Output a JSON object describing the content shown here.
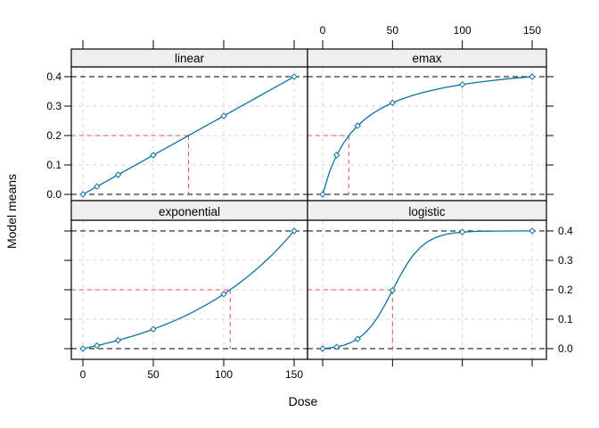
{
  "chart_data": {
    "type": "line",
    "layout": "2x2-lattice",
    "title": "",
    "xlabel": "Dose",
    "ylabel": "Model means",
    "xlim": [
      0,
      150
    ],
    "ylim": [
      0.0,
      0.4
    ],
    "grid": true,
    "x_ticks": [
      0,
      50,
      100,
      150
    ],
    "x_tick_labels": [
      "0",
      "50",
      "100",
      "150"
    ],
    "y_ticks": [
      0.0,
      0.1,
      0.2,
      0.3,
      0.4
    ],
    "y_tick_labels": [
      "0.0",
      "0.1",
      "0.2",
      "0.3",
      "0.4"
    ],
    "reference_lines_y": [
      0.0,
      0.4
    ],
    "doses": [
      0,
      10,
      25,
      50,
      100,
      150
    ],
    "curve_x": [
      0,
      5,
      10,
      15,
      20,
      25,
      30,
      35,
      40,
      45,
      50,
      55,
      60,
      65,
      70,
      75,
      80,
      85,
      90,
      95,
      100,
      105,
      110,
      115,
      120,
      125,
      130,
      135,
      140,
      145,
      150
    ],
    "panels": [
      {
        "name": "linear",
        "strip_label": "linear",
        "row": 0,
        "col": 0,
        "marker_y": [
          0,
          0.0267,
          0.0667,
          0.1333,
          0.2667,
          0.4
        ],
        "curve_y": [
          0,
          0.0133,
          0.0267,
          0.04,
          0.0533,
          0.0667,
          0.08,
          0.0933,
          0.1067,
          0.12,
          0.1333,
          0.1467,
          0.16,
          0.1733,
          0.1867,
          0.2,
          0.2133,
          0.2267,
          0.24,
          0.2533,
          0.2667,
          0.28,
          0.2933,
          0.3067,
          0.32,
          0.3333,
          0.3467,
          0.36,
          0.3733,
          0.3867,
          0.4
        ],
        "td_line": {
          "y": 0.2,
          "x": 75
        }
      },
      {
        "name": "emax",
        "strip_label": "emax",
        "row": 0,
        "col": 1,
        "marker_y": [
          0,
          0.1333,
          0.2333,
          0.3111,
          0.3733,
          0.4
        ],
        "curve_y": [
          0,
          0.0778,
          0.1333,
          0.175,
          0.2074,
          0.2333,
          0.2545,
          0.2722,
          0.2872,
          0.3,
          0.3111,
          0.3208,
          0.3294,
          0.337,
          0.3439,
          0.35,
          0.3556,
          0.3606,
          0.3652,
          0.3694,
          0.3733,
          0.3769,
          0.3802,
          0.3833,
          0.3862,
          0.3889,
          0.3914,
          0.3938,
          0.396,
          0.398,
          0.4
        ],
        "td_line": {
          "y": 0.2,
          "x": 18.75
        }
      },
      {
        "name": "exponential",
        "strip_label": "exponential",
        "row": 1,
        "col": 0,
        "marker_y": [
          0,
          0.0103,
          0.0283,
          0.0662,
          0.1853,
          0.4
        ],
        "curve_y": [
          0,
          0.005,
          0.0103,
          0.0159,
          0.0219,
          0.0283,
          0.035,
          0.0421,
          0.0497,
          0.0577,
          0.0662,
          0.0752,
          0.0848,
          0.0949,
          0.1056,
          0.1171,
          0.1292,
          0.142,
          0.1556,
          0.17,
          0.1853,
          0.2016,
          0.2188,
          0.237,
          0.2564,
          0.277,
          0.2987,
          0.3219,
          0.3464,
          0.3724,
          0.4
        ],
        "td_line": {
          "y": 0.2,
          "x": 104.6
        }
      },
      {
        "name": "logistic",
        "strip_label": "logistic",
        "row": 1,
        "col": 1,
        "marker_y": [
          0,
          0.0059,
          0.0329,
          0.198,
          0.396,
          0.4
        ],
        "curve_y": [
          0,
          0.0023,
          0.0059,
          0.0115,
          0.0201,
          0.0329,
          0.0514,
          0.0773,
          0.1112,
          0.1524,
          0.198,
          0.2436,
          0.2848,
          0.3188,
          0.3446,
          0.3631,
          0.3759,
          0.3845,
          0.3901,
          0.3937,
          0.396,
          0.3975,
          0.3984,
          0.399,
          0.3994,
          0.3996,
          0.3998,
          0.3999,
          0.3999,
          0.4,
          0.4
        ],
        "td_line": {
          "y": 0.2,
          "x": 50
        }
      }
    ],
    "legend_position": "none",
    "colors": {
      "curve": "#0B72A3",
      "td_line": "#E0535E",
      "grid": "#D6D6D6",
      "reference_line": "#000000",
      "strip_bg": "#EFEFEF",
      "panel_border": "#000000",
      "background": "#FFFFFF"
    }
  }
}
